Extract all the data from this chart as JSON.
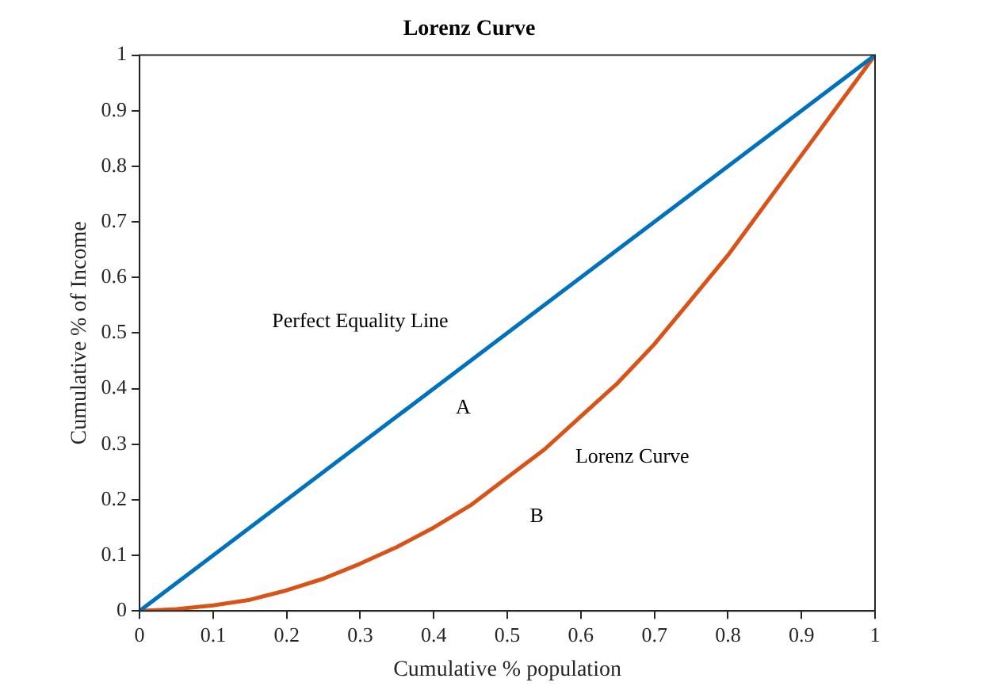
{
  "chart_data": {
    "type": "line",
    "title": "Lorenz Curve",
    "xlabel": "Cumulative % population",
    "ylabel": "Cumulative % of Income",
    "xlim": [
      0,
      1
    ],
    "ylim": [
      0,
      1
    ],
    "xticks": [
      0,
      0.1,
      0.2,
      0.3,
      0.4,
      0.5,
      0.6,
      0.7,
      0.8,
      0.9,
      1
    ],
    "yticks": [
      0,
      0.1,
      0.2,
      0.3,
      0.4,
      0.5,
      0.6,
      0.7,
      0.8,
      0.9,
      1
    ],
    "grid": false,
    "legend": false,
    "marker": "none",
    "line_style": "solid",
    "series": [
      {
        "color": "#0072bd",
        "x": [
          0,
          1
        ],
        "values": [
          0,
          1
        ]
      },
      {
        "color": "#d95319",
        "x": [
          0,
          0.05,
          0.1,
          0.15,
          0.2,
          0.25,
          0.3,
          0.35,
          0.4,
          0.45,
          0.5,
          0.55,
          0.6,
          0.65,
          0.7,
          0.75,
          0.8,
          0.85,
          0.9,
          0.95,
          1
        ],
        "values": [
          0,
          0.003,
          0.01,
          0.02,
          0.037,
          0.058,
          0.085,
          0.115,
          0.15,
          0.19,
          0.24,
          0.29,
          0.35,
          0.41,
          0.48,
          0.56,
          0.64,
          0.73,
          0.82,
          0.91,
          1
        ]
      }
    ],
    "annotations": [
      "Perfect Equality Line",
      "A",
      "Lorenz Curve",
      "B"
    ]
  }
}
